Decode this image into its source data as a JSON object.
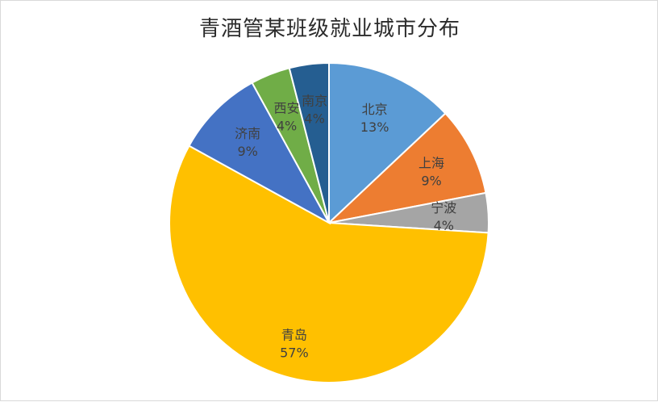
{
  "chart_data": {
    "type": "pie",
    "title": "青酒管某班级就业城市分布",
    "slices": [
      {
        "name": "北京",
        "value": 13,
        "label": "13%",
        "color": "#5B9BD5"
      },
      {
        "name": "上海",
        "value": 9,
        "label": "9%",
        "color": "#ED7D31"
      },
      {
        "name": "宁波",
        "value": 4,
        "label": "4%",
        "color": "#A5A5A5"
      },
      {
        "name": "青岛",
        "value": 57,
        "label": "57%",
        "color": "#FFC000"
      },
      {
        "name": "济南",
        "value": 9,
        "label": "9%",
        "color": "#4472C4"
      },
      {
        "name": "西安",
        "value": 4,
        "label": "4%",
        "color": "#70AD47"
      },
      {
        "name": "南京",
        "value": 4,
        "label": "4%",
        "color": "#255E91"
      }
    ],
    "legend": "none"
  }
}
